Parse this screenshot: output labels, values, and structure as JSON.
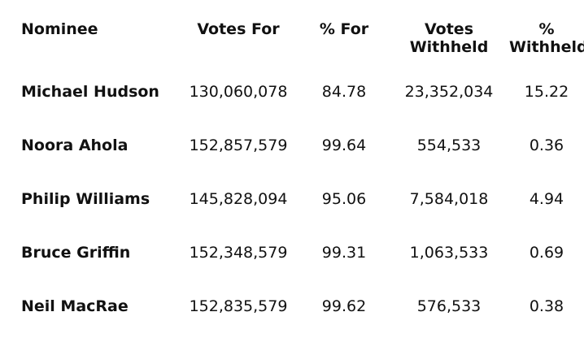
{
  "table": {
    "headers": {
      "nominee": "Nominee",
      "votes_for": "Votes For",
      "pct_for": "% For",
      "votes_withheld_1": "Votes",
      "votes_withheld_2": "Withheld",
      "pct_withheld_1": "%",
      "pct_withheld_2": "Withheld"
    },
    "rows": [
      {
        "nominee": "Michael Hudson",
        "votes_for": "130,060,078",
        "pct_for": "84.78",
        "votes_withheld": "23,352,034",
        "pct_withheld": "15.22"
      },
      {
        "nominee": "Noora Ahola",
        "votes_for": "152,857,579",
        "pct_for": "99.64",
        "votes_withheld": "554,533",
        "pct_withheld": "0.36"
      },
      {
        "nominee": "Philip Williams",
        "votes_for": "145,828,094",
        "pct_for": "95.06",
        "votes_withheld": "7,584,018",
        "pct_withheld": "4.94"
      },
      {
        "nominee": "Bruce Griffin",
        "votes_for": "152,348,579",
        "pct_for": "99.31",
        "votes_withheld": "1,063,533",
        "pct_withheld": "0.69"
      },
      {
        "nominee": "Neil MacRae",
        "votes_for": "152,835,579",
        "pct_for": "99.62",
        "votes_withheld": "576,533",
        "pct_withheld": "0.38"
      }
    ]
  }
}
